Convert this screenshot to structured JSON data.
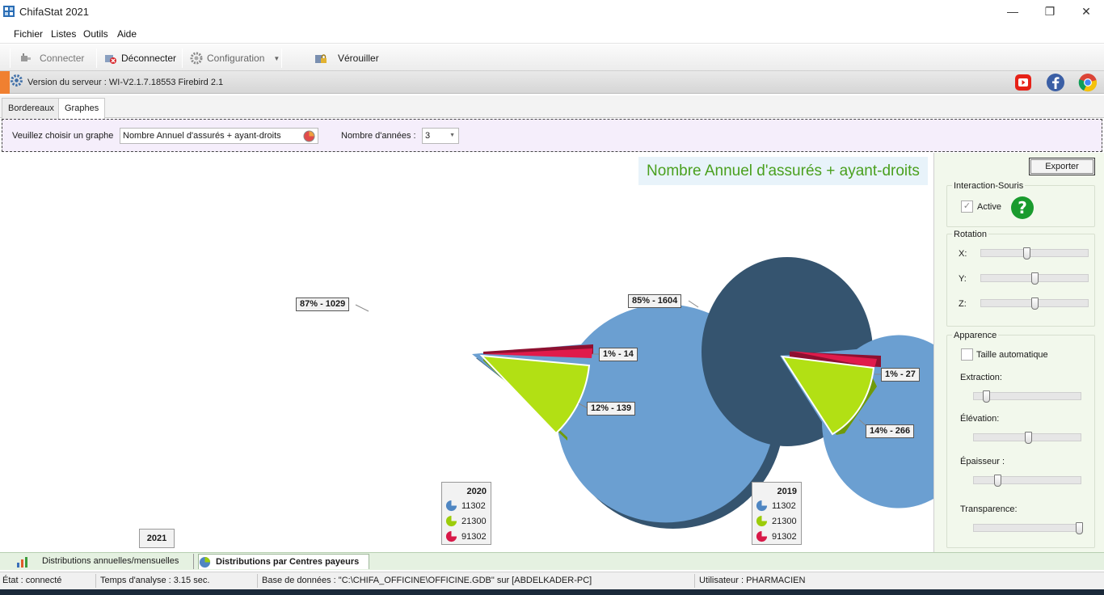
{
  "window": {
    "title": "ChifaStat 2021"
  },
  "menu": [
    "Fichier",
    "Listes",
    "Outils",
    "Aide"
  ],
  "toolbar": {
    "connect": "Connecter",
    "disconnect": "Déconnecter",
    "configuration": "Configuration",
    "lock": "Vérouiller"
  },
  "server": {
    "text": "Version du serveur : WI-V2.1.7.18553 Firebird 2.1",
    "icons": [
      "youtube-icon",
      "facebook-icon",
      "chrome-icon"
    ]
  },
  "tabs": [
    "Bordereaux",
    "Graphes"
  ],
  "selection": {
    "graph_label": "Veuillez choisir un graphe",
    "graph_value": "Nombre Annuel d'assurés + ayant-droits",
    "years_label": "Nombre d'années :",
    "years_value": "3"
  },
  "chart_data": {
    "type": "pie",
    "title": "Nombre Annuel d'assurés + ayant-droits",
    "legend_items": [
      "11302",
      "21300",
      "91302"
    ],
    "colors": [
      "#6b9fd1",
      "#b2e014",
      "#e01b4b"
    ],
    "pies": [
      {
        "year": "2020",
        "values": [
          1029,
          139,
          14
        ],
        "labels": [
          "87% - 1029",
          "12% - 139",
          "1% - 14"
        ]
      },
      {
        "year": "2019",
        "values": [
          1604,
          266,
          27
        ],
        "labels": [
          "85% - 1604",
          "14% - 266",
          "1% - 27"
        ]
      }
    ],
    "extra_year_label": "2021"
  },
  "panel": {
    "export": "Exporter",
    "interaction_group": "Interaction-Souris",
    "active_label": "Active",
    "active_checked": true,
    "rotation_group": "Rotation",
    "rot_x": "X:",
    "rot_y": "Y:",
    "rot_z": "Z:",
    "apparence_group": "Apparence",
    "auto_size": "Taille automatique",
    "extraction": "Extraction:",
    "elevation": "Élévation:",
    "epaisseur": "Épaisseur :",
    "transparence": "Transparence:"
  },
  "bottom_tabs": [
    "Distributions annuelles/mensuelles",
    "Distributions par Centres payeurs"
  ],
  "status": {
    "state": "État : connecté",
    "time": "Temps d'analyse : 3.15 sec.",
    "db": "Base de données : \"C:\\CHIFA_OFFICINE\\OFFICINE.GDB\" sur [ABDELKADER-PC]",
    "user": "Utilisateur : PHARMACIEN"
  }
}
